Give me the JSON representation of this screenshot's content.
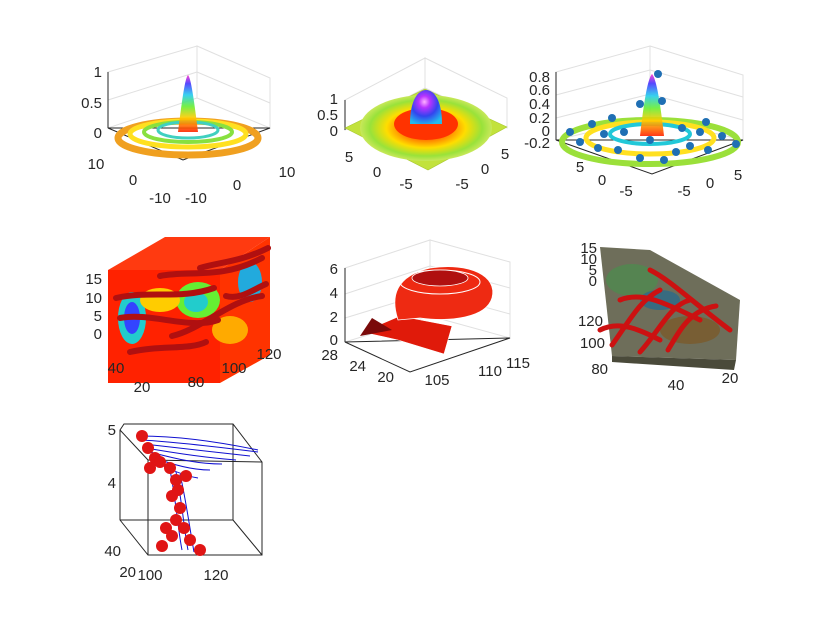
{
  "figure": {
    "background": "#ffffff",
    "layout": "3x3 grid, 7 panels used"
  },
  "chart_data": [
    {
      "id": "p1",
      "type": "mesh3d",
      "surface": "sinc",
      "colormap": "hsv",
      "xticks": [
        "-10",
        "0",
        "10"
      ],
      "yticks": [
        "-10",
        "0",
        "10"
      ],
      "zticks": [
        "0",
        "0.5",
        "1"
      ],
      "xlim": [
        -10,
        10
      ],
      "ylim": [
        -10,
        10
      ],
      "zlim": [
        -0.25,
        1
      ],
      "grid": true
    },
    {
      "id": "p2",
      "type": "surface3d",
      "surface": "gaussian",
      "colormap": "hsv",
      "xticks": [
        "-5",
        "0",
        "5"
      ],
      "yticks": [
        "-5",
        "0",
        "5"
      ],
      "zticks": [
        "0",
        "0.5",
        "1"
      ],
      "xlim": [
        -7,
        7
      ],
      "ylim": [
        -7,
        7
      ],
      "zlim": [
        0,
        1
      ],
      "grid": true
    },
    {
      "id": "p3",
      "type": "mesh3d-with-markers",
      "surface": "sinc",
      "colormap": "hsv",
      "marker_color": "#1f6fb4",
      "xticks": [
        "-5",
        "0",
        "5"
      ],
      "yticks": [
        "-5",
        "0",
        "5"
      ],
      "zticks": [
        "-0.2",
        "0",
        "0.2",
        "0.4",
        "0.6",
        "0.8"
      ],
      "xlim": [
        -7,
        7
      ],
      "ylim": [
        -7,
        7
      ],
      "zlim": [
        -0.25,
        0.85
      ],
      "grid": true
    },
    {
      "id": "p4",
      "type": "slice-contours-streamtubes",
      "tube_color": "#cc1111",
      "xticks": [
        "80",
        "100",
        "120"
      ],
      "yticks": [
        "20",
        "40"
      ],
      "zticks": [
        "0",
        "5",
        "10",
        "15"
      ],
      "xlim": [
        75,
        135
      ],
      "ylim": [
        15,
        60
      ],
      "zlim": [
        0,
        16
      ],
      "grid": false
    },
    {
      "id": "p5",
      "type": "streamribbon",
      "ribbon_color": "#e8200c",
      "xticks": [
        "105",
        "110",
        "115"
      ],
      "yticks": [
        "20",
        "24",
        "28"
      ],
      "zticks": [
        "0",
        "2",
        "4",
        "6"
      ],
      "xlim": [
        100,
        118
      ],
      "ylim": [
        18,
        29
      ],
      "zlim": [
        0,
        6.5
      ],
      "grid": true
    },
    {
      "id": "p6",
      "type": "slice-contours-streamtubes-topview",
      "tube_color": "#cc1111",
      "xticks": [
        "20",
        "40"
      ],
      "yticks": [
        "80",
        "100",
        "120"
      ],
      "zticks": [
        "0",
        "5",
        "10",
        "15"
      ],
      "xlim": [
        15,
        60
      ],
      "ylim": [
        75,
        135
      ],
      "zlim": [
        0,
        16
      ],
      "grid": false
    },
    {
      "id": "p7",
      "type": "streamlines-with-markers",
      "line_color": "#1010d0",
      "marker_color": "#e01515",
      "xticks": [
        "100",
        "120"
      ],
      "yticks": [
        "20",
        "40"
      ],
      "zticks": [
        "4",
        "5"
      ],
      "xlim": [
        95,
        130
      ],
      "ylim": [
        15,
        50
      ],
      "zlim": [
        3.2,
        5
      ],
      "grid": false
    }
  ]
}
